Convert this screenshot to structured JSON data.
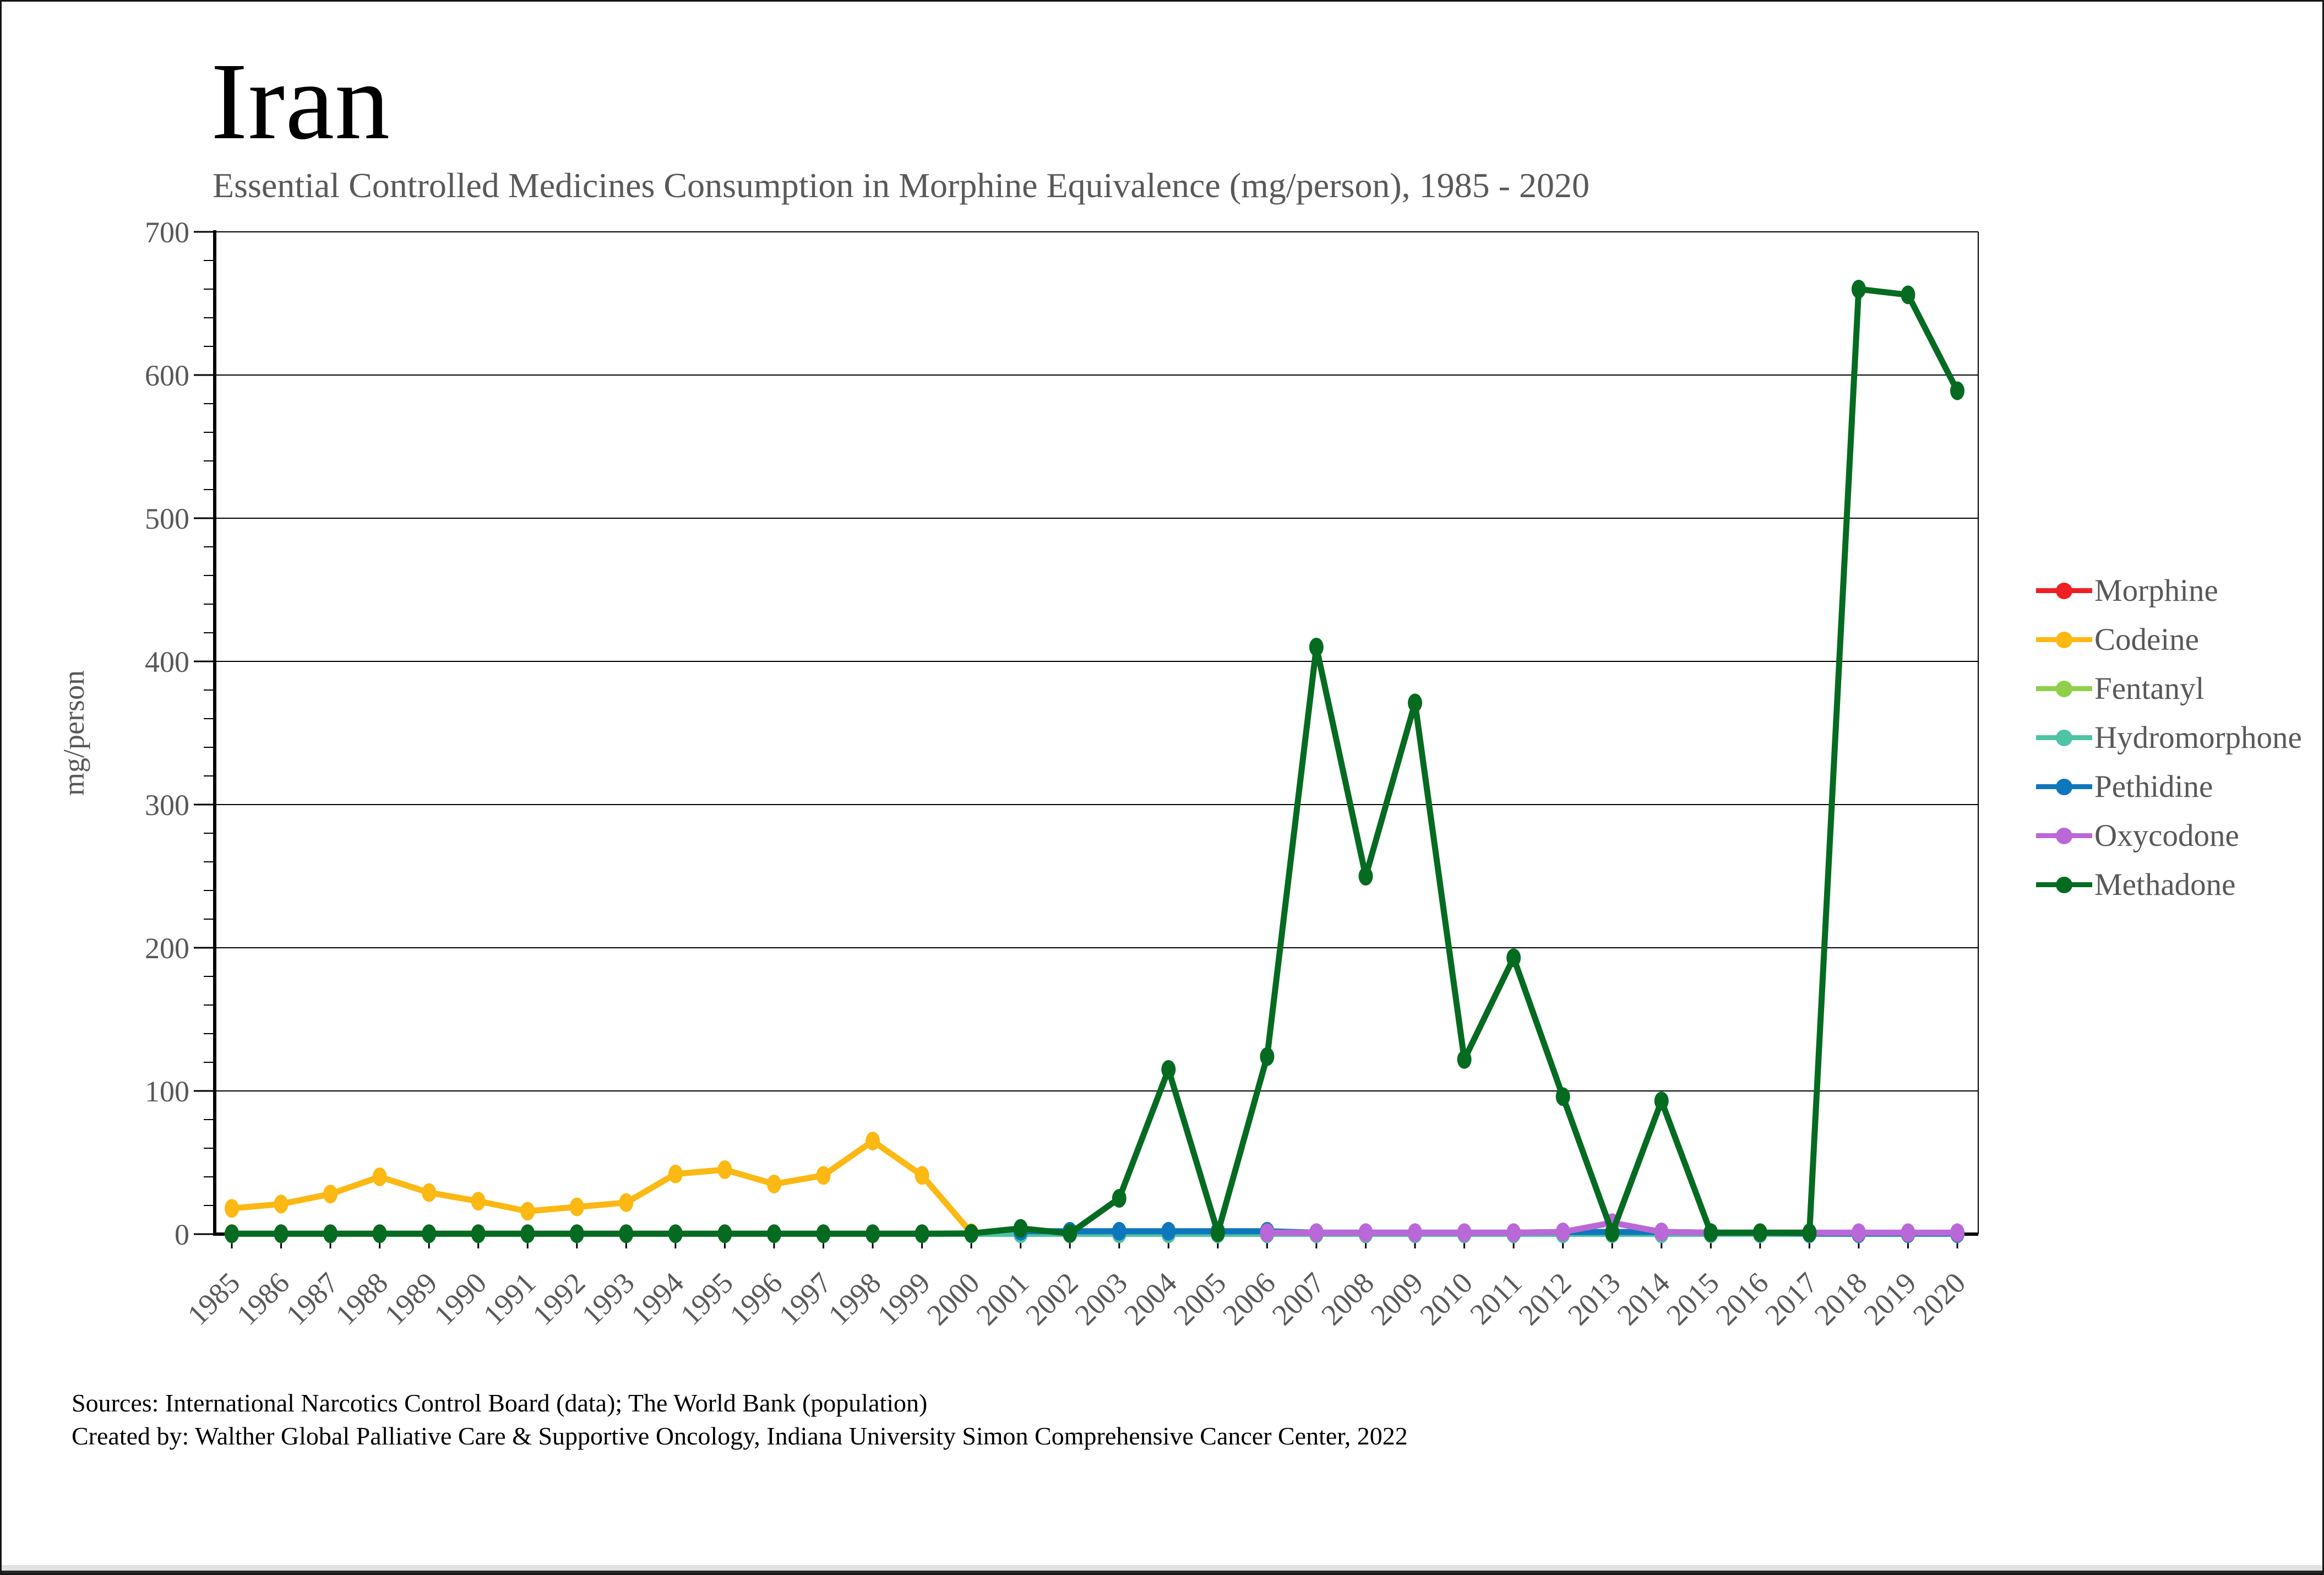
{
  "page": {
    "title": "Iran",
    "subtitle": "Essential Controlled Medicines Consumption in Morphine Equivalence (mg/person), 1985 - 2020",
    "footer_line1": "Sources: International Narcotics Control Board (data); The World Bank (population)",
    "footer_line2": "Created by: Walther Global Palliative Care & Supportive Oncology, Indiana University Simon Comprehensive Cancer Center, 2022"
  },
  "chart_data": {
    "type": "line",
    "title": "Iran",
    "subtitle": "Essential Controlled Medicines Consumption in Morphine Equivalence (mg/person), 1985 - 2020",
    "xlabel": "",
    "ylabel": "mg/person",
    "ylim": [
      0,
      700
    ],
    "ytick_interval": 100,
    "yminor_interval": 20,
    "grid": true,
    "legend_position": "right",
    "x": [
      1985,
      1986,
      1987,
      1988,
      1989,
      1990,
      1991,
      1992,
      1993,
      1994,
      1995,
      1996,
      1997,
      1998,
      1999,
      2000,
      2001,
      2002,
      2003,
      2004,
      2005,
      2006,
      2007,
      2008,
      2009,
      2010,
      2011,
      2012,
      2013,
      2014,
      2015,
      2016,
      2017,
      2018,
      2019,
      2020
    ],
    "series": [
      {
        "name": "Morphine",
        "color": "#EE2024",
        "values": [
          0.3,
          0.3,
          0.3,
          0.3,
          0.3,
          0.3,
          0.3,
          0.3,
          0.3,
          0.3,
          0.3,
          0.3,
          0.3,
          0.3,
          0.3,
          0.3,
          0.3,
          0.3,
          0.3,
          0.3,
          0.3,
          0.3,
          0.3,
          0.3,
          0.3,
          0.3,
          0.3,
          0.3,
          0.3,
          0.3,
          0.3,
          0.3,
          0.3,
          0.3,
          0.3,
          0.3
        ]
      },
      {
        "name": "Codeine",
        "color": "#FCB813",
        "values": [
          18,
          21,
          28,
          40,
          29,
          23,
          16,
          19,
          22,
          42,
          45,
          35,
          41,
          65,
          41,
          1,
          0.5,
          0.5,
          0.5,
          0.5,
          0.5,
          0.5,
          0.5,
          0.5,
          0.5,
          0.5,
          0.5,
          0.5,
          0.5,
          0.5,
          0.5,
          0.5,
          0.5,
          0.5,
          0.5,
          0.5
        ]
      },
      {
        "name": "Fentanyl",
        "color": "#8FCF4A",
        "values": [
          0.2,
          0.2,
          0.2,
          0.2,
          0.2,
          0.2,
          0.2,
          0.2,
          0.2,
          0.2,
          0.2,
          0.2,
          0.2,
          0.2,
          0.2,
          0.2,
          0.2,
          0.2,
          0.2,
          0.2,
          0.2,
          0.2,
          0.2,
          0.2,
          0.2,
          0.2,
          0.2,
          0.2,
          0.2,
          0.2,
          0.2,
          0.2,
          0.2,
          0.2,
          0.2,
          0.2
        ]
      },
      {
        "name": "Hydromorphone",
        "color": "#4EC3A5",
        "values": [
          0.2,
          0.2,
          0.2,
          0.2,
          0.2,
          0.2,
          0.2,
          0.2,
          0.2,
          0.2,
          0.2,
          0.2,
          0.2,
          0.2,
          0.2,
          0.2,
          0.2,
          0.2,
          0.2,
          0.2,
          0.2,
          0.2,
          0.2,
          0.2,
          0.2,
          0.2,
          0.2,
          0.2,
          0.2,
          0.2,
          0.2,
          0.2,
          0.2,
          0.2,
          0.2,
          0.2
        ]
      },
      {
        "name": "Pethidine",
        "color": "#0E76BC",
        "values": [
          null,
          null,
          null,
          null,
          null,
          null,
          null,
          null,
          null,
          null,
          null,
          null,
          null,
          null,
          null,
          null,
          2,
          2,
          2,
          2,
          2,
          2,
          1,
          1,
          1,
          1,
          1,
          1.5,
          1.5,
          1.5,
          1,
          1,
          0.5,
          0.5,
          0.5,
          0.5
        ]
      },
      {
        "name": "Oxycodone",
        "color": "#BA68D8",
        "values": [
          null,
          null,
          null,
          null,
          null,
          null,
          null,
          null,
          null,
          null,
          null,
          null,
          null,
          null,
          null,
          null,
          null,
          null,
          null,
          null,
          null,
          1,
          1,
          1,
          1,
          1,
          1,
          1.5,
          8,
          1.5,
          1,
          1,
          1,
          1,
          1,
          1
        ]
      },
      {
        "name": "Methadone",
        "color": "#056B21",
        "values": [
          0.3,
          0.3,
          0.3,
          0.3,
          0.3,
          0.3,
          0.3,
          0.3,
          0.3,
          0.3,
          0.3,
          0.3,
          0.3,
          0.3,
          0.3,
          0.5,
          4,
          0.5,
          25,
          115,
          1,
          124,
          410,
          250,
          371,
          122,
          193,
          96,
          1,
          93,
          1,
          1,
          1,
          660,
          656,
          589
        ]
      }
    ]
  }
}
